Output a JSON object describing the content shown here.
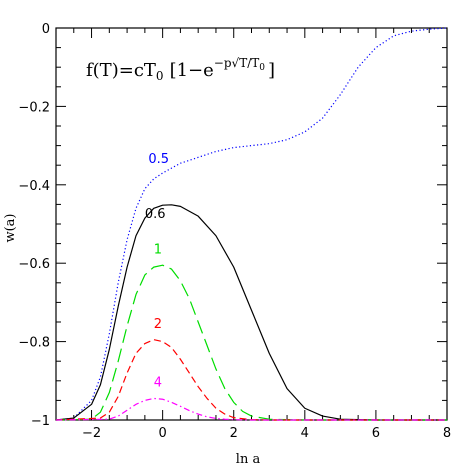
{
  "chart_data": {
    "type": "line",
    "title": "",
    "annotation": {
      "lhs": "f(T)",
      "eq": "=",
      "c": "c",
      "T0": "T",
      "T0_sub": "0",
      "bracket_open": "[",
      "one_minus": "1−e",
      "exp_minus_p": "−p",
      "sqrt": "√",
      "sqrt_arg_T": "T/T",
      "sqrt_arg_sub": "0",
      "bracket_close": "]"
    },
    "xlabel": "ln a",
    "ylabel": "w(a)",
    "xlim": [
      -3.0,
      8.0
    ],
    "ylim": [
      -1.0,
      0.0
    ],
    "xticks": [
      -2,
      0,
      2,
      4,
      6,
      8
    ],
    "yticks": [
      0,
      -0.2,
      -0.4,
      -0.6,
      -0.8,
      -1
    ],
    "xtick_labels": [
      "−2",
      "0",
      "2",
      "4",
      "6",
      "8"
    ],
    "ytick_labels": [
      "0",
      "−0.2",
      "−0.4",
      "−0.6",
      "−0.8",
      "−1"
    ],
    "grid": false,
    "series": [
      {
        "name": "0.5",
        "color": "#0000ff",
        "dash": "dotted",
        "x": [
          -3.0,
          -2.5,
          -2.0,
          -1.75,
          -1.5,
          -1.25,
          -1.0,
          -0.75,
          -0.5,
          -0.25,
          0.0,
          0.5,
          1.0,
          1.5,
          2.0,
          2.5,
          3.0,
          3.5,
          4.0,
          4.5,
          5.0,
          5.5,
          6.0,
          6.5,
          7.0,
          7.5,
          8.0
        ],
        "y": [
          -1.0,
          -0.995,
          -0.95,
          -0.89,
          -0.78,
          -0.65,
          -0.54,
          -0.46,
          -0.41,
          -0.385,
          -0.37,
          -0.345,
          -0.33,
          -0.315,
          -0.305,
          -0.3,
          -0.295,
          -0.285,
          -0.265,
          -0.23,
          -0.17,
          -0.1,
          -0.05,
          -0.02,
          -0.008,
          -0.003,
          0.0
        ]
      },
      {
        "name": "0.6",
        "color": "#000000",
        "dash": "solid",
        "x": [
          -3.0,
          -2.5,
          -2.0,
          -1.75,
          -1.5,
          -1.25,
          -1.0,
          -0.75,
          -0.5,
          -0.25,
          0.0,
          0.25,
          0.5,
          1.0,
          1.5,
          2.0,
          2.5,
          3.0,
          3.5,
          4.0,
          4.5,
          5.0,
          6.0,
          7.0,
          8.0
        ],
        "y": [
          -1.0,
          -0.995,
          -0.96,
          -0.91,
          -0.82,
          -0.71,
          -0.61,
          -0.53,
          -0.485,
          -0.46,
          -0.452,
          -0.451,
          -0.455,
          -0.48,
          -0.53,
          -0.61,
          -0.72,
          -0.83,
          -0.92,
          -0.97,
          -0.99,
          -0.998,
          -1.0,
          -1.0,
          -1.0
        ]
      },
      {
        "name": "1",
        "color": "#00dd00",
        "dash": "longdash",
        "x": [
          -3.0,
          -2.0,
          -1.75,
          -1.5,
          -1.25,
          -1.0,
          -0.75,
          -0.5,
          -0.25,
          0.0,
          0.25,
          0.5,
          0.75,
          1.0,
          1.25,
          1.5,
          1.75,
          2.0,
          2.25,
          2.5,
          3.0,
          4.0,
          8.0
        ],
        "y": [
          -1.0,
          -0.998,
          -0.98,
          -0.93,
          -0.85,
          -0.76,
          -0.68,
          -0.63,
          -0.61,
          -0.605,
          -0.615,
          -0.645,
          -0.69,
          -0.75,
          -0.81,
          -0.87,
          -0.92,
          -0.955,
          -0.978,
          -0.99,
          -0.998,
          -1.0,
          -1.0
        ]
      },
      {
        "name": "2",
        "color": "#ff0000",
        "dash": "dashed",
        "x": [
          -3.0,
          -1.75,
          -1.5,
          -1.25,
          -1.0,
          -0.75,
          -0.5,
          -0.25,
          0.0,
          0.25,
          0.5,
          0.75,
          1.0,
          1.25,
          1.5,
          1.75,
          2.0,
          2.5,
          3.0,
          8.0
        ],
        "y": [
          -1.0,
          -0.995,
          -0.98,
          -0.94,
          -0.88,
          -0.83,
          -0.805,
          -0.795,
          -0.8,
          -0.815,
          -0.845,
          -0.88,
          -0.915,
          -0.945,
          -0.97,
          -0.985,
          -0.994,
          -0.999,
          -1.0,
          -1.0
        ]
      },
      {
        "name": "4",
        "color": "#ff00ff",
        "dash": "dashdot",
        "x": [
          -3.0,
          -1.5,
          -1.25,
          -1.0,
          -0.75,
          -0.5,
          -0.25,
          0.0,
          0.25,
          0.5,
          0.75,
          1.0,
          1.25,
          1.5,
          1.75,
          2.0,
          2.5,
          8.0
        ],
        "y": [
          -1.0,
          -0.998,
          -0.99,
          -0.975,
          -0.96,
          -0.95,
          -0.945,
          -0.947,
          -0.955,
          -0.965,
          -0.976,
          -0.985,
          -0.992,
          -0.996,
          -0.998,
          -0.999,
          -1.0,
          -1.0
        ]
      }
    ],
    "series_labels": [
      {
        "text": "0.5",
        "at_x": -0.4,
        "at_y": -0.345
      },
      {
        "text": "0.6",
        "at_x": -0.5,
        "at_y": -0.485
      },
      {
        "text": "1",
        "at_x": -0.25,
        "at_y": -0.575
      },
      {
        "text": "2",
        "at_x": -0.25,
        "at_y": -0.765
      },
      {
        "text": "4",
        "at_x": -0.25,
        "at_y": -0.915
      }
    ]
  }
}
